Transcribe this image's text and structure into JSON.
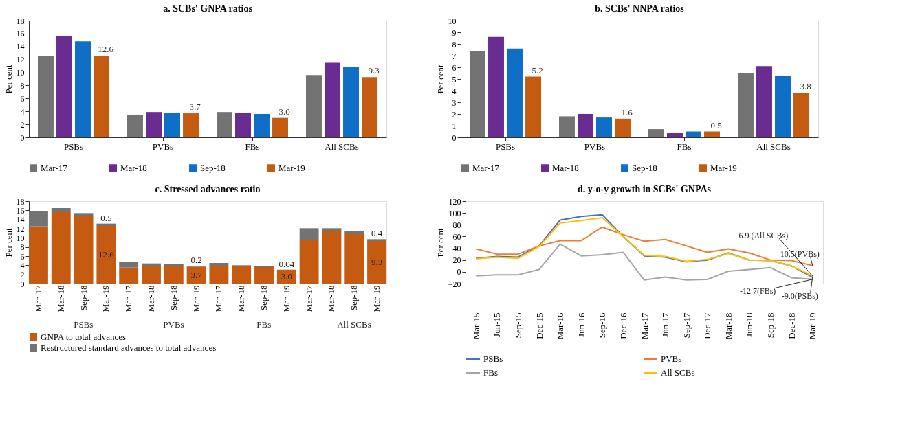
{
  "chart_data": [
    {
      "type": "bar",
      "title": "a. SCBs' GNPA ratios",
      "ylabel": "Per cent",
      "categories": [
        "PSBs",
        "PVBs",
        "FBs",
        "All SCBs"
      ],
      "ylim": [
        0,
        18
      ],
      "yticks": [
        0,
        2,
        4,
        6,
        8,
        10,
        12,
        14,
        16,
        18
      ],
      "grid": false,
      "legend": "bottom",
      "series": [
        {
          "name": "Mar-17",
          "color": "#737373",
          "values": [
            12.5,
            3.5,
            3.9,
            9.6
          ]
        },
        {
          "name": "Mar-18",
          "color": "#6a2c91",
          "values": [
            15.6,
            3.9,
            3.8,
            11.5
          ]
        },
        {
          "name": "Sep-18",
          "color": "#0f6fc6",
          "values": [
            14.8,
            3.8,
            3.6,
            10.8
          ]
        },
        {
          "name": "Mar-19",
          "color": "#c55a11",
          "values": [
            12.6,
            3.7,
            3.0,
            9.3
          ],
          "value_labels": [
            "12.6",
            "3.7",
            "3.0",
            "9.3"
          ]
        }
      ]
    },
    {
      "type": "bar",
      "title": "b. SCBs' NNPA ratios",
      "ylabel": "Per cent",
      "categories": [
        "PSBs",
        "PVBs",
        "FBs",
        "All SCBs"
      ],
      "ylim": [
        0,
        10
      ],
      "yticks": [
        0,
        1,
        2,
        3,
        4,
        5,
        6,
        7,
        8,
        9,
        10
      ],
      "grid": false,
      "legend": "bottom",
      "series": [
        {
          "name": "Mar-17",
          "color": "#737373",
          "values": [
            7.4,
            1.8,
            0.7,
            5.5
          ]
        },
        {
          "name": "Mar-18",
          "color": "#6a2c91",
          "values": [
            8.6,
            2.0,
            0.4,
            6.1
          ]
        },
        {
          "name": "Sep-18",
          "color": "#0f6fc6",
          "values": [
            7.6,
            1.7,
            0.5,
            5.3
          ]
        },
        {
          "name": "Mar-19",
          "color": "#c55a11",
          "values": [
            5.2,
            1.6,
            0.5,
            3.8
          ],
          "value_labels": [
            "5.2",
            "1.6",
            "0.5",
            "3.8"
          ]
        }
      ]
    },
    {
      "type": "bar",
      "stacked": true,
      "title": "c. Stressed advances ratio",
      "ylabel": "Per cent",
      "categories": [
        "Mar-17",
        "Mar-18",
        "Sep-18",
        "Mar-19",
        "Mar-17",
        "Mar-18",
        "Sep-18",
        "Mar-19",
        "Mar-17",
        "Mar-18",
        "Sep-18",
        "Mar-19",
        "Mar-17",
        "Mar-18",
        "Sep-18",
        "Mar-19"
      ],
      "ylim": [
        0,
        18
      ],
      "yticks": [
        0,
        2,
        4,
        6,
        8,
        10,
        12,
        14,
        16,
        18
      ],
      "grid": false,
      "legend": "bottom",
      "annotations": [
        "PSBs",
        "PVBs",
        "FBs",
        "All SCBs"
      ],
      "series": [
        {
          "name": "GNPA to total advances",
          "color": "#c55a11",
          "values": [
            12.5,
            15.6,
            14.8,
            12.6,
            3.5,
            3.9,
            3.8,
            3.7,
            3.9,
            3.8,
            3.6,
            3.0,
            9.6,
            11.5,
            10.8,
            9.3
          ],
          "value_labels": [
            null,
            null,
            null,
            "12.6",
            null,
            null,
            null,
            "3.7",
            null,
            null,
            null,
            "3.0",
            null,
            null,
            null,
            "9.3"
          ]
        },
        {
          "name": "Restructured standard advances to total advances",
          "color": "#737373",
          "values": [
            3.3,
            0.9,
            0.6,
            0.5,
            1.2,
            0.5,
            0.4,
            0.2,
            0.6,
            0.2,
            0.2,
            0.04,
            2.5,
            0.6,
            0.6,
            0.4
          ],
          "value_labels": [
            null,
            null,
            null,
            "0.5",
            null,
            null,
            null,
            "0.2",
            null,
            null,
            null,
            "0.04",
            null,
            null,
            null,
            "0.4"
          ]
        }
      ]
    },
    {
      "type": "line",
      "title": "d. y-o-y growth in SCBs' GNPAs",
      "ylabel": "Per cent",
      "categories": [
        "Mar-15",
        "Jun-15",
        "Sep-15",
        "Dec-15",
        "Mar-16",
        "Jun-16",
        "Sep-16",
        "Dec-16",
        "Mar-17",
        "Jun-17",
        "Sep-17",
        "Dec-17",
        "Mar-18",
        "Jun-18",
        "Sep-18",
        "Dec-18",
        "Mar-19"
      ],
      "ylim": [
        -20,
        120
      ],
      "yticks": [
        -20,
        0,
        20,
        40,
        60,
        80,
        100,
        120
      ],
      "grid": false,
      "legend": "bottom",
      "marker": "none",
      "line_style": "solid",
      "annotations": [
        {
          "text": "-6.9 (All SCBs)",
          "x": "Mar-19",
          "y": -6.9
        },
        {
          "text": "10.5(PVBs)",
          "x": "Mar-19",
          "y": 10.5
        },
        {
          "text": "-12.7(FBs)",
          "x": "Mar-19",
          "y": -12.7
        },
        {
          "text": "-9.0(PSBs)",
          "x": "Mar-19",
          "y": -9.0
        }
      ],
      "series": [
        {
          "name": "PSBs",
          "color": "#4472c4",
          "values": [
            23,
            26,
            25,
            44,
            88,
            94,
            97,
            60,
            27,
            25,
            17,
            20,
            32,
            20,
            19,
            10,
            -9.0
          ]
        },
        {
          "name": "PVBs",
          "color": "#ed7d31",
          "values": [
            39,
            30,
            30,
            44,
            53,
            53,
            76,
            63,
            52,
            55,
            44,
            33,
            39,
            32,
            20,
            19,
            10.5
          ]
        },
        {
          "name": "FBs",
          "color": "#a5a5a5",
          "values": [
            -7,
            -5,
            -5,
            4,
            47,
            27,
            29,
            33,
            -14,
            -9,
            -14,
            -13,
            1,
            4,
            7,
            -10,
            -12.7
          ]
        },
        {
          "name": "All SCBs",
          "color": "#ffc000",
          "values": [
            22,
            25,
            23,
            43,
            83,
            87,
            92,
            60,
            28,
            26,
            18,
            21,
            31,
            20,
            19,
            10,
            -6.9
          ]
        }
      ]
    }
  ]
}
